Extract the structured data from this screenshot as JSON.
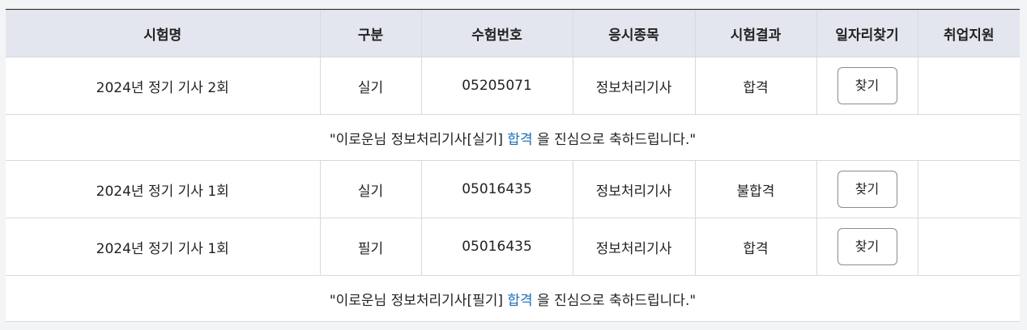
{
  "headers": [
    "시험명",
    "구분",
    "수험번호",
    "응시종목",
    "시험결과",
    "일자리찾기",
    "취업지원"
  ],
  "rows": [
    {
      "exam": "2024년 정기 기사 2회",
      "type": "실기",
      "number": "05205071",
      "subject": "정보처리기사",
      "result": "합격",
      "find_label": "찾기",
      "support": ""
    },
    {
      "exam": "2024년 정기 기사 1회",
      "type": "실기",
      "number": "05016435",
      "subject": "정보처리기사",
      "result": "불합격",
      "find_label": "찾기",
      "support": ""
    },
    {
      "exam": "2024년 정기 기사 1회",
      "type": "필기",
      "number": "05016435",
      "subject": "정보처리기사",
      "result": "합격",
      "find_label": "찾기",
      "support": ""
    }
  ],
  "messages": [
    {
      "prefix": "\"이로운님 정보처리기사[실기] ",
      "highlight": "합격",
      "suffix": " 을 진심으로 축하드립니다.\""
    },
    {
      "prefix": "\"이로운님 정보처리기사[필기] ",
      "highlight": "합격",
      "suffix": " 을 진심으로 축하드립니다.\""
    }
  ],
  "colors": {
    "header_bg": "#e3e6ee",
    "highlight": "#1a6fb8",
    "page_bg": "#f3f4f6"
  }
}
